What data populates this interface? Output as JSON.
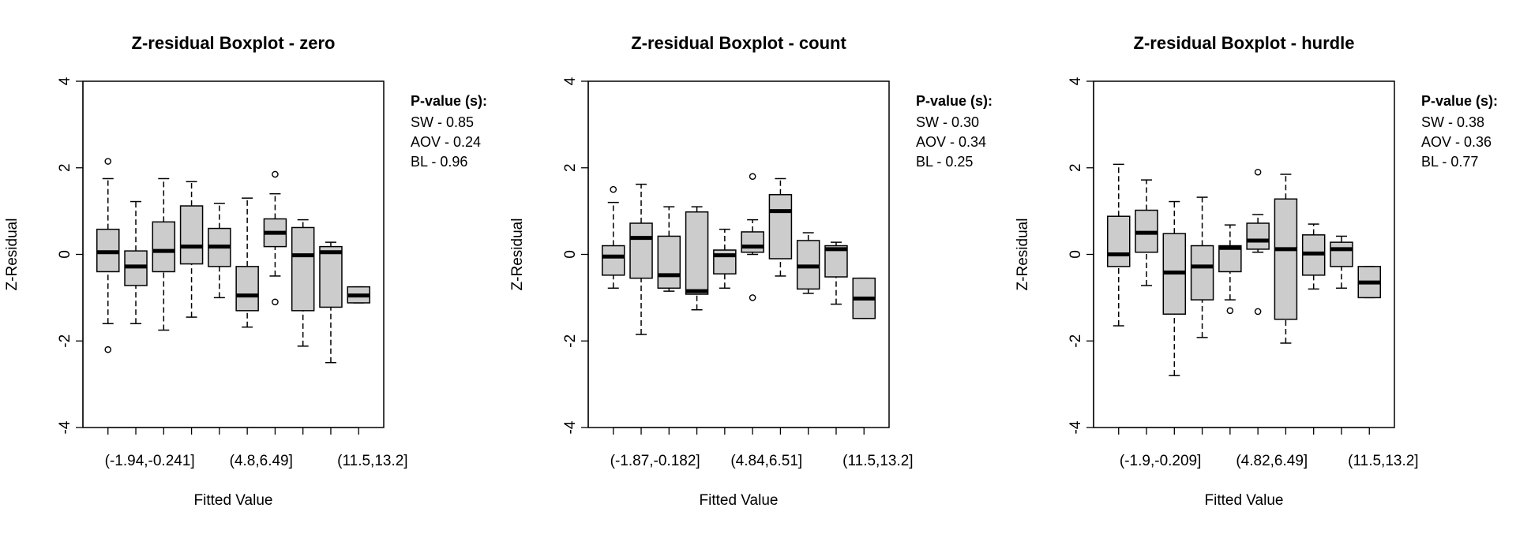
{
  "chart_data": [
    {
      "type": "boxplot",
      "title": "Z-residual Boxplot - zero",
      "xlabel": "Fitted Value",
      "ylabel": "Z-Residual",
      "ylim": [
        -4,
        4
      ],
      "yticks": [
        "-4",
        "-2",
        "0",
        "2",
        "4"
      ],
      "xtick_labels": [
        "(-1.94,-0.241]",
        "(4.8,6.49]",
        "(11.5,13.2]"
      ],
      "xtick_label_groups": [
        1.5,
        5.5,
        9.5
      ],
      "pvalue_header": "P-value (s):",
      "pvalues": [
        "SW - 0.85",
        "AOV - 0.24",
        "BL - 0.96"
      ],
      "boxes": [
        {
          "wlo": -1.6,
          "q1": -0.4,
          "med": 0.05,
          "q3": 0.58,
          "whi": 1.75,
          "out": [
            2.15,
            -2.2
          ]
        },
        {
          "wlo": -1.6,
          "q1": -0.72,
          "med": -0.28,
          "q3": 0.08,
          "whi": 1.22,
          "out": []
        },
        {
          "wlo": -1.75,
          "q1": -0.4,
          "med": 0.08,
          "q3": 0.75,
          "whi": 1.75,
          "out": []
        },
        {
          "wlo": -1.45,
          "q1": -0.22,
          "med": 0.18,
          "q3": 1.12,
          "whi": 1.68,
          "out": []
        },
        {
          "wlo": -1.0,
          "q1": -0.28,
          "med": 0.18,
          "q3": 0.6,
          "whi": 1.18,
          "out": []
        },
        {
          "wlo": -1.68,
          "q1": -1.3,
          "med": -0.95,
          "q3": -0.28,
          "whi": 1.3,
          "out": []
        },
        {
          "wlo": -0.5,
          "q1": 0.18,
          "med": 0.5,
          "q3": 0.82,
          "whi": 1.4,
          "out": [
            1.85,
            -1.1
          ]
        },
        {
          "wlo": -2.12,
          "q1": -1.3,
          "med": -0.02,
          "q3": 0.62,
          "whi": 0.8,
          "out": []
        },
        {
          "wlo": -2.5,
          "q1": -1.22,
          "med": 0.05,
          "q3": 0.18,
          "whi": 0.28,
          "out": []
        },
        {
          "wlo": -1.12,
          "q1": -1.12,
          "med": -0.95,
          "q3": -0.75,
          "whi": -0.75,
          "out": []
        }
      ]
    },
    {
      "type": "boxplot",
      "title": "Z-residual Boxplot - count",
      "xlabel": "Fitted Value",
      "ylabel": "Z-Residual",
      "ylim": [
        -4,
        4
      ],
      "yticks": [
        "-4",
        "-2",
        "0",
        "2",
        "4"
      ],
      "xtick_labels": [
        "(-1.87,-0.182]",
        "(4.84,6.51]",
        "(11.5,13.2]"
      ],
      "xtick_label_groups": [
        1.5,
        5.5,
        9.5
      ],
      "pvalue_header": "P-value (s):",
      "pvalues": [
        "SW - 0.30",
        "AOV - 0.34",
        "BL - 0.25"
      ],
      "boxes": [
        {
          "wlo": -0.78,
          "q1": -0.48,
          "med": -0.05,
          "q3": 0.2,
          "whi": 1.2,
          "out": [
            1.5
          ]
        },
        {
          "wlo": -1.85,
          "q1": -0.55,
          "med": 0.38,
          "q3": 0.72,
          "whi": 1.62,
          "out": []
        },
        {
          "wlo": -0.85,
          "q1": -0.78,
          "med": -0.48,
          "q3": 0.42,
          "whi": 1.1,
          "out": []
        },
        {
          "wlo": -1.28,
          "q1": -0.92,
          "med": -0.85,
          "q3": 0.98,
          "whi": 1.1,
          "out": []
        },
        {
          "wlo": -0.78,
          "q1": -0.45,
          "med": -0.02,
          "q3": 0.1,
          "whi": 0.58,
          "out": []
        },
        {
          "wlo": 0.0,
          "q1": 0.05,
          "med": 0.18,
          "q3": 0.52,
          "whi": 0.8,
          "out": [
            1.8,
            -1.0
          ]
        },
        {
          "wlo": -0.5,
          "q1": -0.1,
          "med": 1.0,
          "q3": 1.38,
          "whi": 1.75,
          "out": []
        },
        {
          "wlo": -0.9,
          "q1": -0.8,
          "med": -0.28,
          "q3": 0.32,
          "whi": 0.5,
          "out": []
        },
        {
          "wlo": -1.15,
          "q1": -0.52,
          "med": 0.12,
          "q3": 0.2,
          "whi": 0.28,
          "out": []
        },
        {
          "wlo": -1.48,
          "q1": -1.48,
          "med": -1.02,
          "q3": -0.55,
          "whi": -0.55,
          "out": []
        }
      ]
    },
    {
      "type": "boxplot",
      "title": "Z-residual Boxplot - hurdle",
      "xlabel": "Fitted Value",
      "ylabel": "Z-Residual",
      "ylim": [
        -4,
        4
      ],
      "yticks": [
        "-4",
        "-2",
        "0",
        "2",
        "4"
      ],
      "xtick_labels": [
        "(-1.9,-0.209]",
        "(4.82,6.49]",
        "(11.5,13.2]"
      ],
      "xtick_label_groups": [
        1.5,
        5.5,
        9.5
      ],
      "pvalue_header": "P-value (s):",
      "pvalues": [
        "SW - 0.38",
        "AOV - 0.36",
        "BL - 0.77"
      ],
      "boxes": [
        {
          "wlo": -1.65,
          "q1": -0.28,
          "med": 0.0,
          "q3": 0.88,
          "whi": 2.08,
          "out": []
        },
        {
          "wlo": -0.72,
          "q1": 0.05,
          "med": 0.5,
          "q3": 1.02,
          "whi": 1.72,
          "out": []
        },
        {
          "wlo": -2.8,
          "q1": -1.38,
          "med": -0.42,
          "q3": 0.48,
          "whi": 1.22,
          "out": []
        },
        {
          "wlo": -1.92,
          "q1": -1.05,
          "med": -0.28,
          "q3": 0.2,
          "whi": 1.32,
          "out": []
        },
        {
          "wlo": -1.05,
          "q1": -0.4,
          "med": 0.15,
          "q3": 0.2,
          "whi": 0.68,
          "out": [
            -1.3
          ]
        },
        {
          "wlo": 0.05,
          "q1": 0.12,
          "med": 0.32,
          "q3": 0.72,
          "whi": 0.92,
          "out": [
            1.9,
            -1.32
          ]
        },
        {
          "wlo": -2.05,
          "q1": -1.5,
          "med": 0.12,
          "q3": 1.28,
          "whi": 1.85,
          "out": []
        },
        {
          "wlo": -0.8,
          "q1": -0.48,
          "med": 0.02,
          "q3": 0.45,
          "whi": 0.7,
          "out": []
        },
        {
          "wlo": -0.78,
          "q1": -0.28,
          "med": 0.12,
          "q3": 0.28,
          "whi": 0.42,
          "out": []
        },
        {
          "wlo": -1.0,
          "q1": -1.0,
          "med": -0.65,
          "q3": -0.28,
          "whi": -0.28,
          "out": []
        }
      ]
    }
  ]
}
